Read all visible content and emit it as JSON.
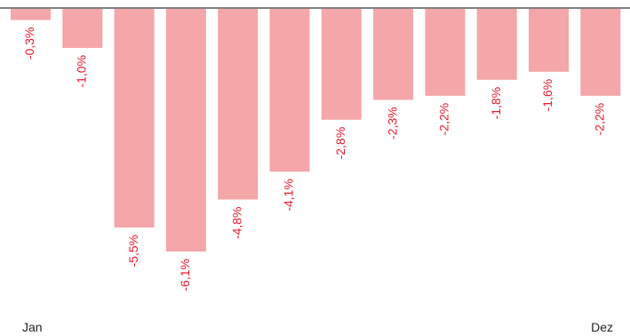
{
  "chart_data": {
    "type": "bar",
    "categories": [
      "",
      "",
      "",
      "",
      "",
      "",
      "",
      "",
      "",
      "",
      "",
      ""
    ],
    "values": [
      -0.3,
      -1.0,
      -5.5,
      -6.1,
      -4.8,
      -4.1,
      -2.8,
      -2.3,
      -2.2,
      -1.8,
      -1.6,
      -2.2
    ],
    "data_labels": [
      "-0,3%",
      "-1,0%",
      "-5,5%",
      "-6,1%",
      "-4,8%",
      "-4,1%",
      "-2,8%",
      "-2,3%",
      "-2,2%",
      "-1,8%",
      "-1,6%",
      "-2,2%"
    ],
    "title": "",
    "xlabel": "",
    "ylabel": "",
    "ylim": [
      -6.1,
      0
    ],
    "grid": false,
    "x_start_label": "Jan",
    "x_end_label": "Dez",
    "colors": {
      "bar": "#f4a6a8",
      "label": "#e8192c",
      "baseline": "#808080"
    }
  }
}
